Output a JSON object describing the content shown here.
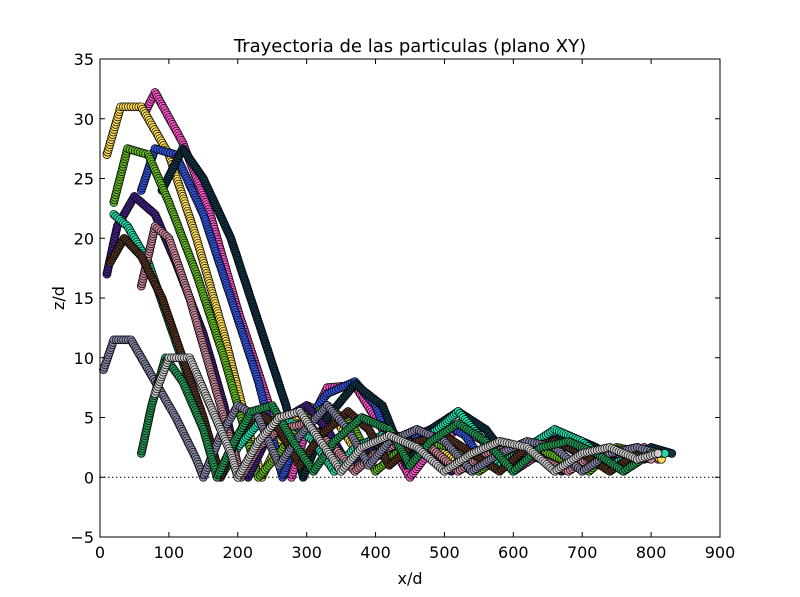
{
  "chart_data": {
    "type": "scatter",
    "title": "Trayectoria de las particulas (plano XY)",
    "xlabel": "x/d",
    "ylabel": "z/d",
    "xlim": [
      0,
      900
    ],
    "ylim": [
      -5,
      35
    ],
    "xticks": [
      0,
      100,
      200,
      300,
      400,
      500,
      600,
      700,
      800,
      900
    ],
    "yticks": [
      -5,
      0,
      5,
      10,
      15,
      20,
      25,
      30,
      35
    ],
    "xtick_labels": [
      "0",
      "100",
      "200",
      "300",
      "400",
      "500",
      "600",
      "700",
      "800",
      "900"
    ],
    "ytick_labels": [
      "−5",
      "0",
      "5",
      "10",
      "15",
      "20",
      "25",
      "30",
      "35"
    ],
    "grid": false,
    "reference_line": {
      "y": 0,
      "style": "dotted",
      "color": "#000000"
    },
    "marker": "circle",
    "series": [
      {
        "color": "#ff55cc",
        "trajectory": [
          [
            65,
            30.5
          ],
          [
            80,
            32.2
          ],
          [
            120,
            28
          ],
          [
            160,
            22
          ],
          [
            200,
            14
          ],
          [
            240,
            7
          ],
          [
            278,
            0
          ],
          [
            300,
            4
          ],
          [
            330,
            7.5
          ],
          [
            370,
            7.7
          ],
          [
            410,
            4
          ],
          [
            450,
            0
          ],
          [
            490,
            3
          ],
          [
            520,
            4
          ],
          [
            560,
            3
          ],
          [
            600,
            0.5
          ],
          [
            640,
            2
          ],
          [
            680,
            2.8
          ],
          [
            720,
            2
          ],
          [
            760,
            0.5
          ],
          [
            790,
            2.5
          ],
          [
            810,
            1.5
          ]
        ]
      },
      {
        "color": "#ffdd55",
        "trajectory": [
          [
            10,
            27
          ],
          [
            30,
            31
          ],
          [
            60,
            31
          ],
          [
            100,
            27
          ],
          [
            140,
            20
          ],
          [
            180,
            12
          ],
          [
            215,
            4
          ],
          [
            235,
            0
          ],
          [
            260,
            3
          ],
          [
            300,
            6
          ],
          [
            340,
            5
          ],
          [
            380,
            1.5
          ],
          [
            420,
            2
          ],
          [
            460,
            3.2
          ],
          [
            500,
            2
          ],
          [
            540,
            0.5
          ],
          [
            580,
            1.5
          ],
          [
            620,
            2.4
          ],
          [
            660,
            2
          ],
          [
            700,
            0.8
          ],
          [
            740,
            2
          ],
          [
            780,
            2.5
          ],
          [
            815,
            1.5
          ]
        ]
      },
      {
        "color": "#3355dd",
        "trajectory": [
          [
            60,
            24
          ],
          [
            80,
            27.5
          ],
          [
            110,
            27
          ],
          [
            150,
            22
          ],
          [
            190,
            15
          ],
          [
            230,
            8
          ],
          [
            265,
            0
          ],
          [
            290,
            4
          ],
          [
            330,
            7
          ],
          [
            370,
            8
          ],
          [
            400,
            6
          ],
          [
            430,
            1.5
          ],
          [
            460,
            3.5
          ],
          [
            500,
            4.5
          ],
          [
            530,
            3.5
          ],
          [
            560,
            1
          ],
          [
            600,
            2.5
          ],
          [
            640,
            3
          ],
          [
            680,
            2.5
          ],
          [
            720,
            1
          ],
          [
            760,
            2
          ],
          [
            800,
            2
          ]
        ]
      },
      {
        "color": "#113344",
        "trajectory": [
          [
            90,
            24
          ],
          [
            120,
            27.5
          ],
          [
            150,
            25
          ],
          [
            190,
            20
          ],
          [
            230,
            13
          ],
          [
            270,
            6
          ],
          [
            295,
            0
          ],
          [
            330,
            5
          ],
          [
            370,
            7.8
          ],
          [
            410,
            6
          ],
          [
            445,
            1
          ],
          [
            480,
            4
          ],
          [
            520,
            5.5
          ],
          [
            560,
            4
          ],
          [
            600,
            1
          ],
          [
            640,
            2.8
          ],
          [
            680,
            3.5
          ],
          [
            720,
            2.5
          ],
          [
            760,
            1
          ],
          [
            800,
            2.5
          ],
          [
            830,
            2
          ]
        ]
      },
      {
        "color": "#66bb22",
        "trajectory": [
          [
            20,
            23
          ],
          [
            40,
            27.5
          ],
          [
            70,
            27
          ],
          [
            100,
            23
          ],
          [
            140,
            17
          ],
          [
            180,
            10
          ],
          [
            215,
            3
          ],
          [
            230,
            0
          ],
          [
            260,
            2
          ],
          [
            290,
            4.5
          ],
          [
            330,
            6
          ],
          [
            370,
            4
          ],
          [
            400,
            0.5
          ],
          [
            430,
            2
          ],
          [
            470,
            3
          ],
          [
            510,
            2.5
          ],
          [
            550,
            0.5
          ],
          [
            590,
            2
          ],
          [
            630,
            2.5
          ],
          [
            670,
            1.5
          ],
          [
            710,
            0.5
          ],
          [
            750,
            2.5
          ],
          [
            790,
            2
          ]
        ]
      },
      {
        "color": "#442288",
        "trajectory": [
          [
            10,
            17
          ],
          [
            25,
            21
          ],
          [
            50,
            23.5
          ],
          [
            80,
            22
          ],
          [
            110,
            18
          ],
          [
            150,
            12
          ],
          [
            180,
            6
          ],
          [
            200,
            1
          ],
          [
            215,
            0
          ],
          [
            240,
            3
          ],
          [
            270,
            5
          ],
          [
            300,
            6
          ],
          [
            330,
            4
          ],
          [
            360,
            1
          ],
          [
            390,
            2.5
          ],
          [
            430,
            3.5
          ],
          [
            470,
            2.5
          ],
          [
            510,
            0.5
          ],
          [
            550,
            2
          ],
          [
            590,
            2.8
          ],
          [
            630,
            2
          ],
          [
            670,
            0.5
          ],
          [
            710,
            2
          ],
          [
            750,
            2.3
          ],
          [
            790,
            1.5
          ]
        ]
      },
      {
        "color": "#22ddaa",
        "trajectory": [
          [
            20,
            22
          ],
          [
            40,
            21
          ],
          [
            70,
            18
          ],
          [
            100,
            13
          ],
          [
            130,
            8
          ],
          [
            160,
            3
          ],
          [
            175,
            0
          ],
          [
            200,
            2.5
          ],
          [
            230,
            4.5
          ],
          [
            270,
            5
          ],
          [
            310,
            3
          ],
          [
            340,
            0.5
          ],
          [
            370,
            2.5
          ],
          [
            410,
            3.5
          ],
          [
            450,
            2.5
          ],
          [
            490,
            4
          ],
          [
            520,
            5.5
          ],
          [
            550,
            3.5
          ],
          [
            580,
            1
          ],
          [
            620,
            2.5
          ],
          [
            660,
            4
          ],
          [
            700,
            3
          ],
          [
            740,
            1
          ],
          [
            780,
            2
          ],
          [
            820,
            2
          ]
        ]
      },
      {
        "color": "#cc8899",
        "trajectory": [
          [
            60,
            16
          ],
          [
            80,
            21
          ],
          [
            100,
            20
          ],
          [
            130,
            15
          ],
          [
            160,
            9
          ],
          [
            190,
            3
          ],
          [
            205,
            0
          ],
          [
            230,
            2.5
          ],
          [
            260,
            4
          ],
          [
            300,
            4.5
          ],
          [
            340,
            2.5
          ],
          [
            370,
            0.5
          ],
          [
            400,
            2
          ],
          [
            440,
            3
          ],
          [
            480,
            2.5
          ],
          [
            520,
            0.5
          ],
          [
            560,
            2
          ],
          [
            600,
            2.5
          ],
          [
            640,
            1.5
          ],
          [
            680,
            0.5
          ],
          [
            720,
            2
          ],
          [
            760,
            2
          ],
          [
            800,
            1.5
          ]
        ]
      },
      {
        "color": "#553322",
        "trajectory": [
          [
            15,
            18
          ],
          [
            35,
            20
          ],
          [
            60,
            18.5
          ],
          [
            90,
            15
          ],
          [
            120,
            10
          ],
          [
            150,
            5
          ],
          [
            175,
            0
          ],
          [
            200,
            3.5
          ],
          [
            230,
            5.5
          ],
          [
            260,
            4
          ],
          [
            290,
            1
          ],
          [
            320,
            3.5
          ],
          [
            360,
            5.5
          ],
          [
            390,
            4
          ],
          [
            420,
            1
          ],
          [
            460,
            3
          ],
          [
            500,
            3.5
          ],
          [
            540,
            2
          ],
          [
            580,
            0.5
          ],
          [
            620,
            2.5
          ],
          [
            660,
            3
          ],
          [
            700,
            2
          ],
          [
            740,
            0.5
          ],
          [
            780,
            2
          ],
          [
            810,
            2
          ]
        ]
      },
      {
        "color": "#8888aa",
        "trajectory": [
          [
            5,
            9
          ],
          [
            20,
            11.5
          ],
          [
            45,
            11.5
          ],
          [
            80,
            8
          ],
          [
            110,
            5
          ],
          [
            140,
            1.5
          ],
          [
            150,
            0
          ],
          [
            175,
            3.5
          ],
          [
            200,
            6
          ],
          [
            230,
            5
          ],
          [
            260,
            1
          ],
          [
            290,
            3.5
          ],
          [
            330,
            6
          ],
          [
            360,
            4
          ],
          [
            390,
            1
          ],
          [
            420,
            3
          ],
          [
            460,
            4
          ],
          [
            500,
            3
          ],
          [
            540,
            0.5
          ],
          [
            580,
            2
          ],
          [
            620,
            3
          ],
          [
            660,
            2.5
          ],
          [
            700,
            0.5
          ],
          [
            740,
            2
          ],
          [
            780,
            2.5
          ],
          [
            810,
            2
          ]
        ]
      },
      {
        "color": "#229955",
        "trajectory": [
          [
            60,
            2
          ],
          [
            75,
            6
          ],
          [
            95,
            10
          ],
          [
            120,
            8
          ],
          [
            150,
            4
          ],
          [
            170,
            0
          ],
          [
            195,
            3
          ],
          [
            220,
            5.5
          ],
          [
            250,
            6
          ],
          [
            280,
            3
          ],
          [
            310,
            0.5
          ],
          [
            340,
            3
          ],
          [
            380,
            5
          ],
          [
            420,
            4
          ],
          [
            450,
            1
          ],
          [
            480,
            3
          ],
          [
            520,
            4.5
          ],
          [
            560,
            3
          ],
          [
            600,
            0.5
          ],
          [
            640,
            2.5
          ],
          [
            680,
            3
          ],
          [
            720,
            2
          ],
          [
            760,
            0.5
          ],
          [
            800,
            2
          ]
        ]
      },
      {
        "color": "#cccccc",
        "trajectory": [
          [
            80,
            7
          ],
          [
            100,
            10
          ],
          [
            130,
            10
          ],
          [
            160,
            6
          ],
          [
            190,
            2
          ],
          [
            200,
            0
          ],
          [
            230,
            3
          ],
          [
            260,
            5
          ],
          [
            290,
            5.5
          ],
          [
            320,
            3
          ],
          [
            350,
            0.5
          ],
          [
            380,
            2.5
          ],
          [
            420,
            3.5
          ],
          [
            460,
            2.5
          ],
          [
            500,
            0.5
          ],
          [
            540,
            2
          ],
          [
            580,
            3
          ],
          [
            620,
            2.5
          ],
          [
            660,
            0.5
          ],
          [
            700,
            2
          ],
          [
            740,
            2.5
          ],
          [
            780,
            1.5
          ],
          [
            810,
            2
          ]
        ]
      }
    ]
  }
}
